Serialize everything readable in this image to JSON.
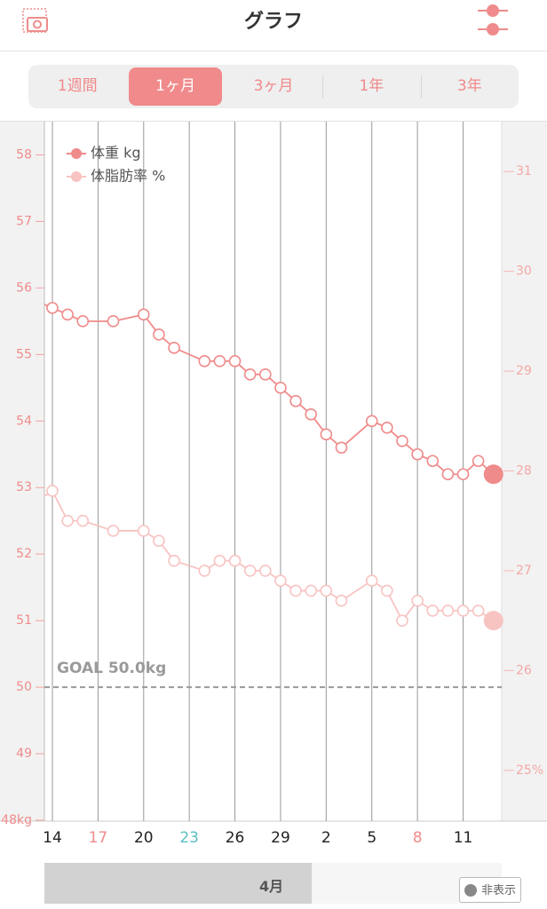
{
  "header": {
    "title": "グラフ"
  },
  "tabs": {
    "items": [
      "1週間",
      "1ヶ月",
      "3ヶ月",
      "1年",
      "3年"
    ],
    "active": 1
  },
  "chart_data": {
    "type": "line",
    "categories": [
      null,
      "14",
      null,
      null,
      "17",
      null,
      null,
      "20",
      null,
      null,
      "23",
      null,
      null,
      "26",
      null,
      null,
      "29",
      null,
      null,
      "2",
      null,
      null,
      "5",
      null,
      null,
      "8",
      null,
      null,
      "11",
      null,
      null
    ],
    "series": [
      {
        "name": "体重 kg",
        "color": "#f08b8b",
        "values": [
          55.8,
          55.7,
          55.6,
          55.5,
          null,
          55.5,
          null,
          55.6,
          55.3,
          55.1,
          null,
          54.9,
          54.9,
          54.9,
          54.7,
          54.7,
          54.5,
          54.3,
          54.1,
          53.8,
          53.6,
          null,
          54.0,
          53.9,
          53.7,
          53.5,
          53.4,
          53.2,
          53.2,
          53.4,
          53.2
        ]
      },
      {
        "name": "体脂肪率 %",
        "color": "#f7c4c2",
        "axis": "y2",
        "values": [
          27.7,
          27.8,
          27.5,
          27.5,
          null,
          27.4,
          null,
          27.4,
          27.3,
          27.1,
          null,
          27.0,
          27.1,
          27.1,
          27.0,
          27.0,
          26.9,
          26.8,
          26.8,
          26.8,
          26.7,
          null,
          26.9,
          26.8,
          26.5,
          26.7,
          26.6,
          26.6,
          26.6,
          26.6,
          26.5
        ]
      }
    ],
    "ylim": [
      48,
      58.5
    ],
    "yticks": [
      {
        "value": 48,
        "label": "48kg"
      },
      49,
      50,
      51,
      52,
      53,
      54,
      55,
      56,
      57,
      58
    ],
    "y2lim": [
      24.5,
      31.5
    ],
    "y2ticks": [
      {
        "value": 25,
        "label": "25%"
      },
      26,
      27,
      28,
      29,
      30,
      31
    ],
    "goal": {
      "value": 50,
      "label": "GOAL 50.0kg"
    },
    "grid": true,
    "legend": "top-left"
  },
  "footer": {
    "month": "4月",
    "hide_button": "非表示"
  }
}
